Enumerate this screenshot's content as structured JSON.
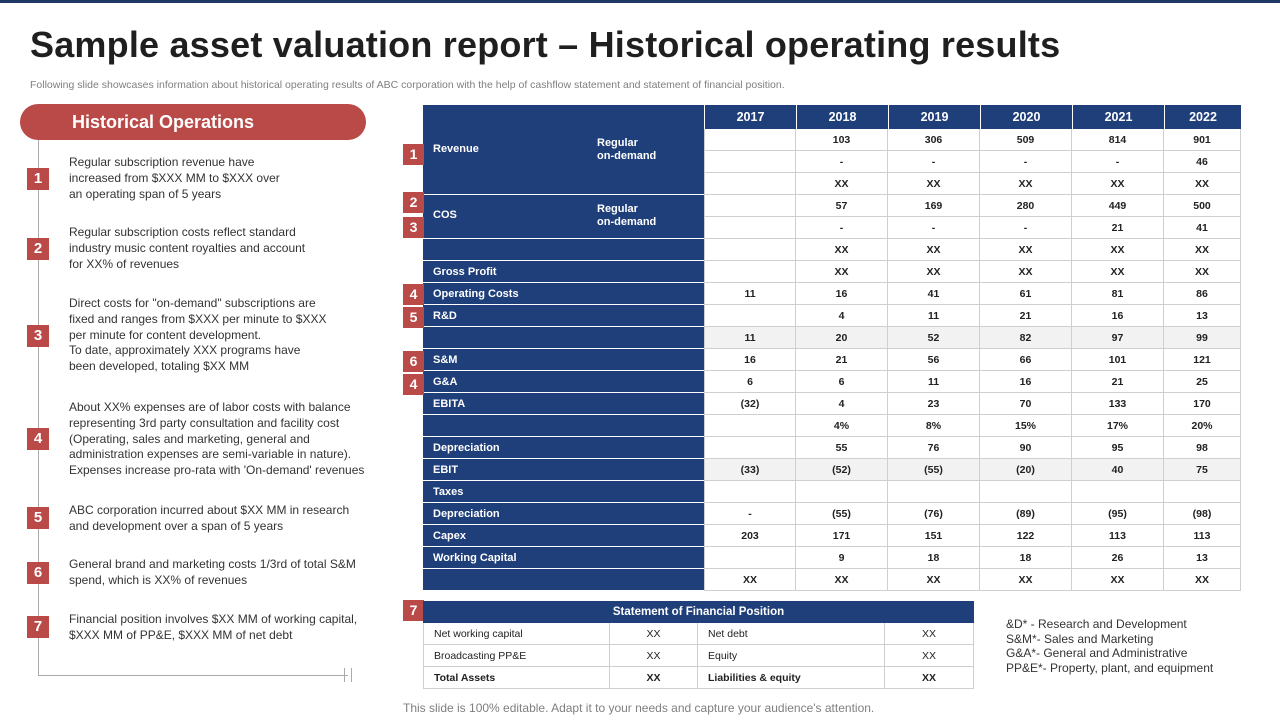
{
  "title": "Sample asset valuation report – Historical operating results",
  "subtitle": "Following slide showcases information about historical operating results of ABC corporation with the help of cashflow statement and statement of financial position.",
  "sidebar": {
    "heading": "Historical Operations",
    "items": [
      {
        "num": "1",
        "text": "Regular subscription revenue  have\nincreased from $XXX  MM to $XXX  over\nan operating  span of 5 years"
      },
      {
        "num": "2",
        "text": "Regular subscription costs reflect standard\nindustry music content royalties and account\nfor XX%  of revenues"
      },
      {
        "num": "3",
        "text": "Direct costs for \"on-demand\" subscriptions are\nfixed and ranges from $XXX  per minute to $XXX\nper minute for content development.\nTo date, approximately XXX  programs have\nbeen developed,  totaling $XX  MM"
      },
      {
        "num": "4",
        "text": "About XX%  expenses are of labor costs with balance\nrepresenting 3rd party consultation and facility cost\n(Operating,  sales and marketing, general and\nadministration expenses are semi-variable  in nature).\nExpenses increase pro-rata with 'On-demand'  revenues"
      },
      {
        "num": "5",
        "text": "ABC corporation  incurred about $XX  MM in research\nand development  over  a span of 5 years"
      },
      {
        "num": "6",
        "text": "General brand and marketing costs 1/3rd of total S&M\nspend, which is XX%  of revenues"
      },
      {
        "num": "7",
        "text": "Financial position involves  $XX  MM of working capital,\n$XXX  MM of PP&E, $XXX  MM of net debt"
      }
    ]
  },
  "main_table": {
    "years": [
      "2017",
      "2018",
      "2019",
      "2020",
      "2021",
      "2022"
    ],
    "label_groups": [
      {
        "label": "Revenue",
        "sub": "Regular\non-demand"
      },
      {
        "label": "COS",
        "sub": "Regular\non-demand"
      },
      {
        "label": "",
        "sub": ""
      },
      {
        "label": "Gross Profit",
        "sub": ""
      },
      {
        "label": "Operating Costs",
        "sub": ""
      },
      {
        "label": "R&D",
        "sub": ""
      },
      {
        "label": "",
        "sub": ""
      },
      {
        "label": "S&M",
        "sub": ""
      },
      {
        "label": "G&A",
        "sub": ""
      },
      {
        "label": "EBITA",
        "sub": ""
      },
      {
        "label": "",
        "sub": ""
      },
      {
        "label": "Depreciation",
        "sub": ""
      },
      {
        "label": "EBIT",
        "sub": ""
      },
      {
        "label": "Taxes",
        "sub": ""
      },
      {
        "label": "Depreciation",
        "sub": ""
      },
      {
        "label": "Capex",
        "sub": ""
      },
      {
        "label": "Working Capital",
        "sub": ""
      },
      {
        "label": "",
        "sub": ""
      }
    ],
    "rows": [
      [
        "",
        "103",
        "306",
        "509",
        "814",
        "901"
      ],
      [
        "",
        "-",
        "-",
        "-",
        "-",
        "46"
      ],
      [
        "",
        "XX",
        "XX",
        "XX",
        "XX",
        "XX"
      ],
      [
        "",
        "57",
        "169",
        "280",
        "449",
        "500"
      ],
      [
        "",
        "-",
        "-",
        "-",
        "21",
        "41"
      ],
      [
        "",
        "XX",
        "XX",
        "XX",
        "XX",
        "XX"
      ],
      [
        "",
        "XX",
        "XX",
        "XX",
        "XX",
        "XX"
      ],
      [
        "11",
        "16",
        "41",
        "61",
        "81",
        "86"
      ],
      [
        "",
        "4",
        "11",
        "21",
        "16",
        "13"
      ],
      [
        "11",
        "20",
        "52",
        "82",
        "97",
        "99"
      ],
      [
        "16",
        "21",
        "56",
        "66",
        "101",
        "121"
      ],
      [
        "6",
        "6",
        "11",
        "16",
        "21",
        "25"
      ],
      [
        "(32)",
        "4",
        "23",
        "70",
        "133",
        "170"
      ],
      [
        "",
        "4%",
        "8%",
        "15%",
        "17%",
        "20%"
      ],
      [
        "",
        "55",
        "76",
        "90",
        "95",
        "98"
      ],
      [
        "(33)",
        "(52)",
        "(55)",
        "(20)",
        "40",
        "75"
      ],
      [
        "",
        "",
        "",
        "",
        "",
        ""
      ],
      [
        "-",
        "(55)",
        "(76)",
        "(89)",
        "(95)",
        "(98)"
      ],
      [
        "203",
        "171",
        "151",
        "122",
        "113",
        "113"
      ],
      [
        "",
        "9",
        "18",
        "18",
        "26",
        "13"
      ],
      [
        "XX",
        "XX",
        "XX",
        "XX",
        "XX",
        "XX"
      ]
    ]
  },
  "markers": [
    "1",
    "2",
    "3",
    "4",
    "5",
    "6",
    "4",
    "7"
  ],
  "financial_position": {
    "title": "Statement of Financial Position",
    "rows": [
      {
        "l1": "Net working capital",
        "v1": "XX",
        "l2": "Net debt",
        "v2": "XX"
      },
      {
        "l1": "Broadcasting PP&E",
        "v1": "XX",
        "l2": "Equity",
        "v2": "XX"
      },
      {
        "l1": "Total Assets",
        "v1": "XX",
        "l2": "Liabilities & equity",
        "v2": "XX"
      }
    ]
  },
  "abbreviations": [
    "&D* - Research and Development",
    "S&M*- Sales and Marketing",
    "G&A*- General and Administrative",
    "PP&E*- Property, plant, and equipment"
  ],
  "footer": "This slide is 100% editable. Adapt it to your needs and capture your audience's attention."
}
